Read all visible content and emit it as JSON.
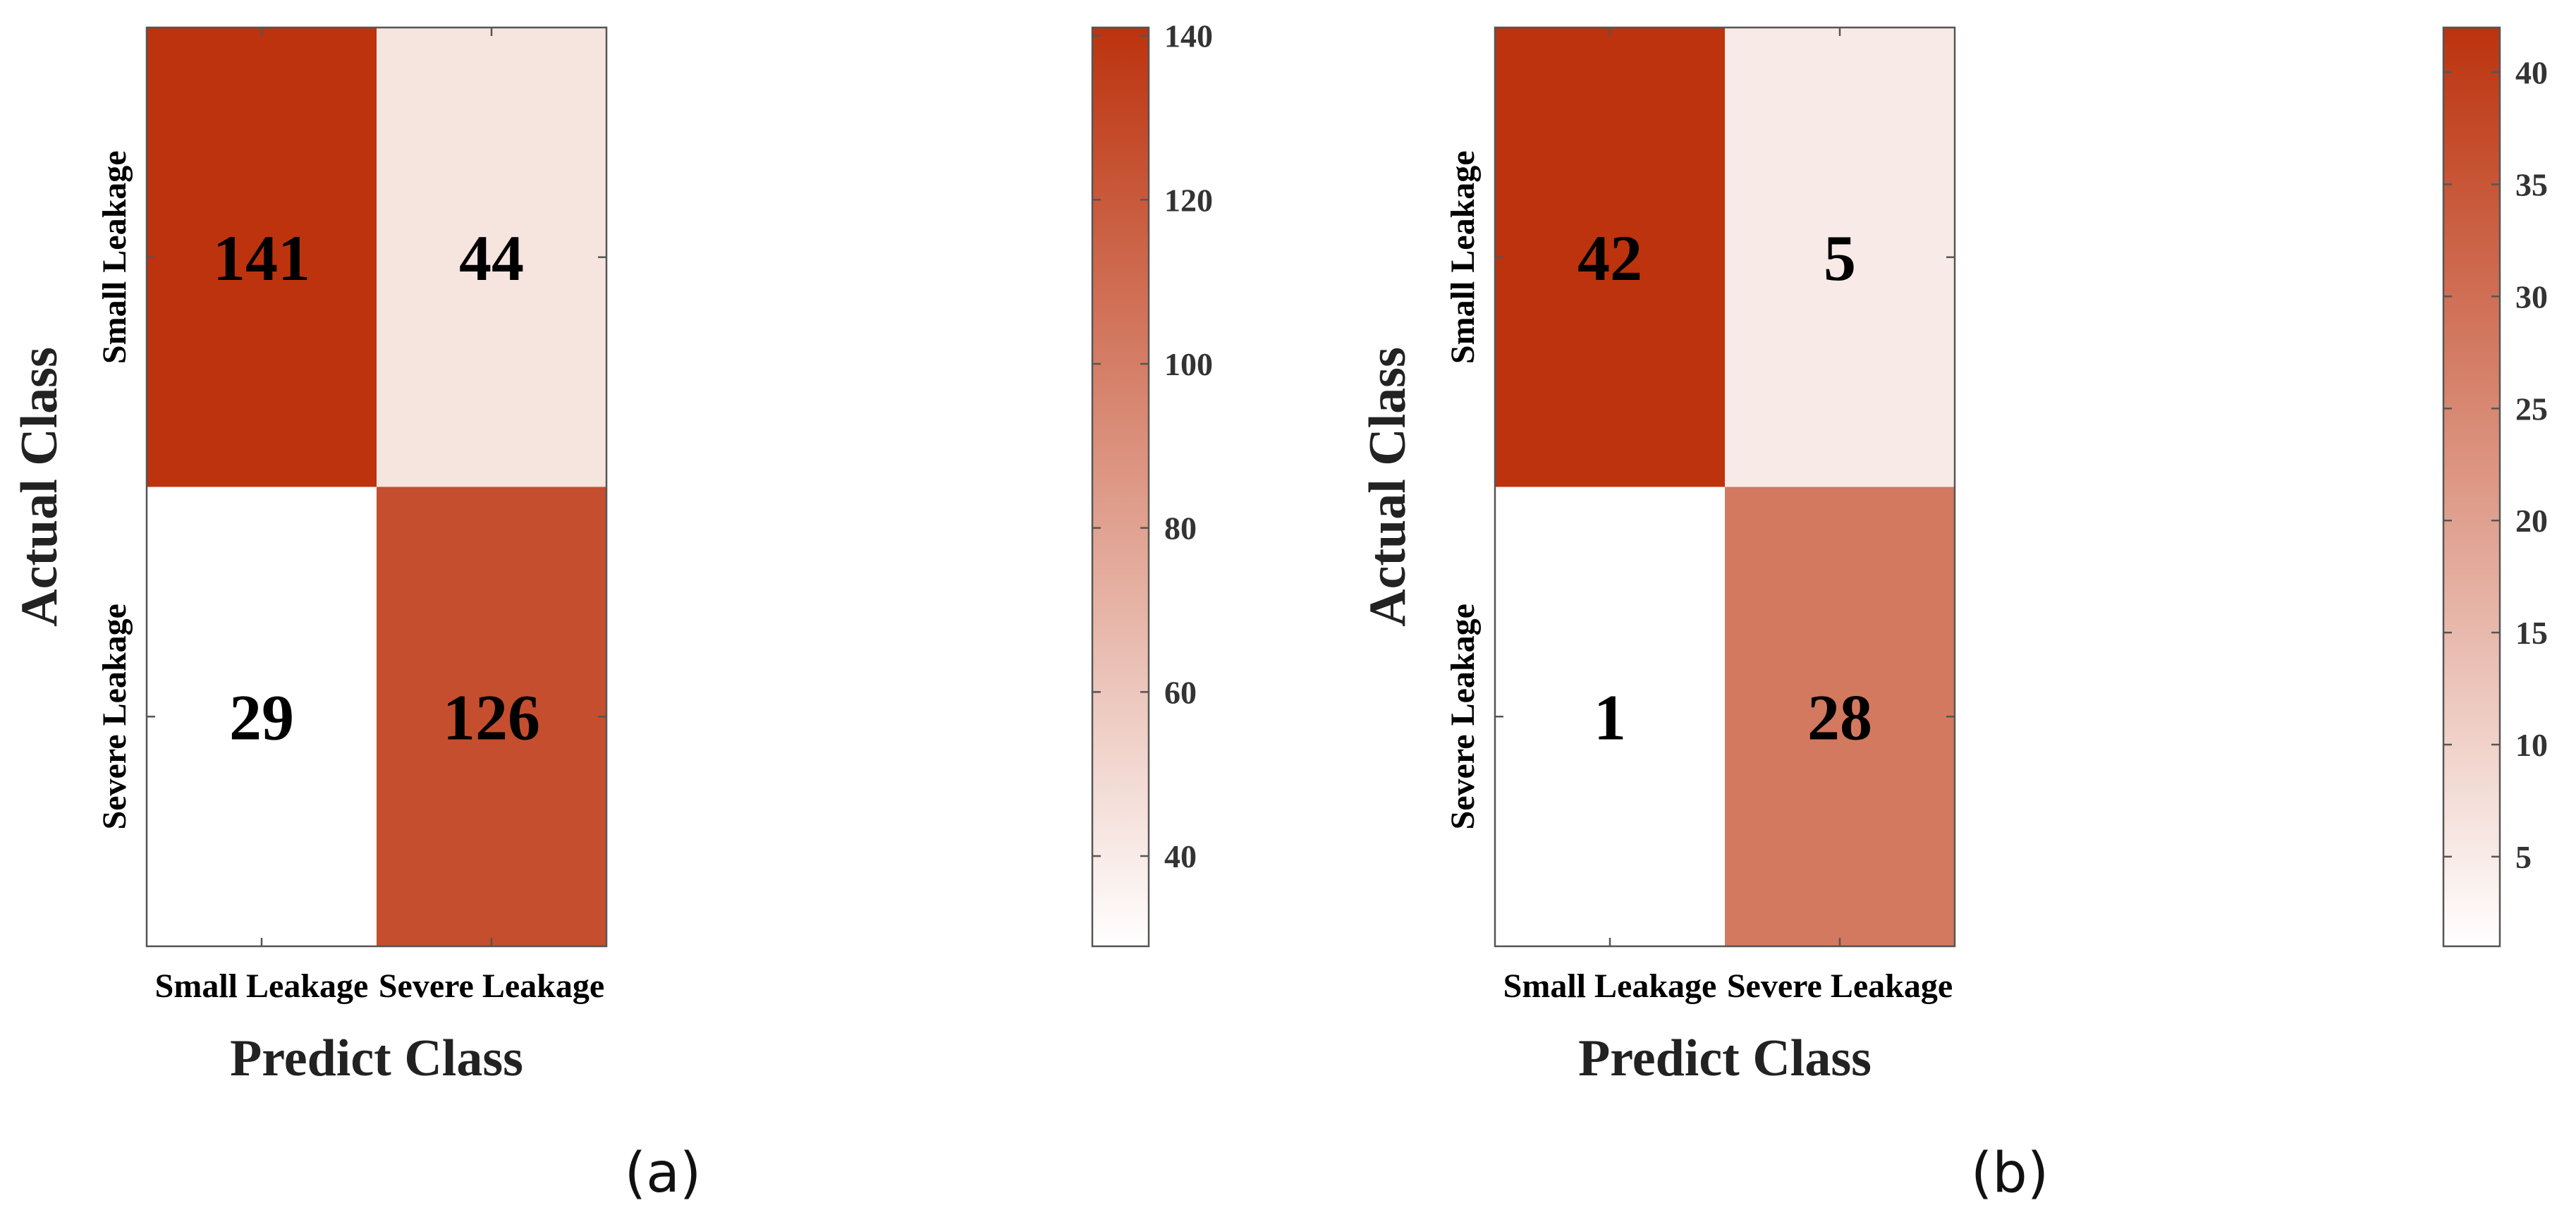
{
  "chart_data": [
    {
      "type": "heatmap",
      "panel_label": "(a)",
      "xlabel": "Predict Class",
      "ylabel": "Actual Class",
      "x_categories": [
        "Small Leakage",
        "Severe Leakage"
      ],
      "y_categories": [
        "Small Leakage",
        "Severe Leakage"
      ],
      "values": [
        [
          141,
          44
        ],
        [
          29,
          126
        ]
      ],
      "colorbar": {
        "min": 29,
        "max": 141,
        "ticks": [
          40,
          60,
          80,
          100,
          120,
          140
        ]
      }
    },
    {
      "type": "heatmap",
      "panel_label": "(b)",
      "xlabel": "Predict Class",
      "ylabel": "Actual Class",
      "x_categories": [
        "Small Leakage",
        "Severe Leakage"
      ],
      "y_categories": [
        "Small Leakage",
        "Severe Leakage"
      ],
      "values": [
        [
          42,
          5
        ],
        [
          1,
          28
        ]
      ],
      "colorbar": {
        "min": 1,
        "max": 42,
        "ticks": [
          5,
          10,
          15,
          20,
          25,
          30,
          35,
          40
        ]
      }
    }
  ],
  "colors": {
    "low": "#ffffff",
    "high": "#bc330e",
    "text": "#000000",
    "axis": "#555555"
  }
}
